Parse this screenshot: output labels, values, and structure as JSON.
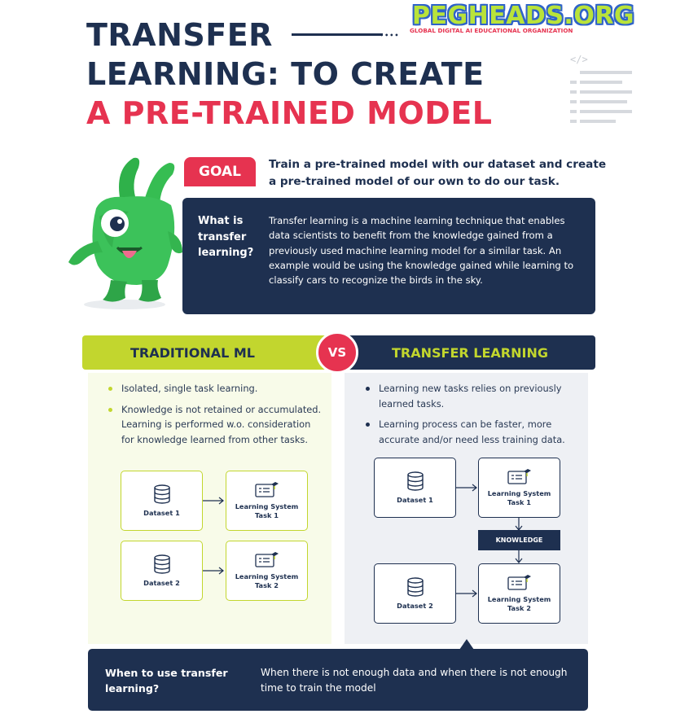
{
  "title": {
    "line1": "TRANSFER",
    "line2": "LEARNING: TO CREATE",
    "line3": "A PRE-TRAINED MODEL"
  },
  "logo": {
    "name": "PEGHEADS.ORG",
    "tagline": "GLOBAL DIGITAL AI EDUCATIONAL ORGANIZATION"
  },
  "goal": {
    "badge": "GOAL",
    "text": "Train a pre-trained model with our dataset and create a pre-trained model of our own to do our task."
  },
  "what_is": {
    "question": "What is transfer learning?",
    "answer": "Transfer learning is a machine learning technique that enables data scientists to benefit from the knowledge gained from a previously used machine learning model for a similar task. An example would be using the knowledge gained while learning to classify cars to recognize the birds in the sky."
  },
  "comparison": {
    "left_title": "TRADITIONAL ML",
    "vs": "VS",
    "right_title": "TRANSFER LEARNING",
    "left_bullets": [
      "Isolated, single task learning.",
      "Knowledge is not retained or accumulated. Learning is performed w.o. consideration for knowledge learned from other tasks."
    ],
    "right_bullets": [
      "Learning new tasks relies on previously learned tasks.",
      "Learning process can be faster, more accurate and/or need less training data."
    ]
  },
  "flow_left": {
    "dataset1": "Dataset 1",
    "task1": "Learning System Task 1",
    "dataset2": "Dataset 2",
    "task2": "Learning System Task 2"
  },
  "flow_right": {
    "dataset1": "Dataset 1",
    "task1": "Learning System Task 1",
    "knowledge": "KNOWLEDGE",
    "dataset2": "Dataset 2",
    "task2": "Learning System Task 2"
  },
  "when": {
    "question": "When to use transfer learning?",
    "answer": "When there is not enough data and when there is not enough time to train the model"
  },
  "colors": {
    "navy": "#1e3050",
    "red": "#e63350",
    "lime": "#c2d62e"
  },
  "icons": [
    "database-icon",
    "learning-board-icon",
    "code-icon",
    "document-lines-icon",
    "mascot-monster"
  ]
}
